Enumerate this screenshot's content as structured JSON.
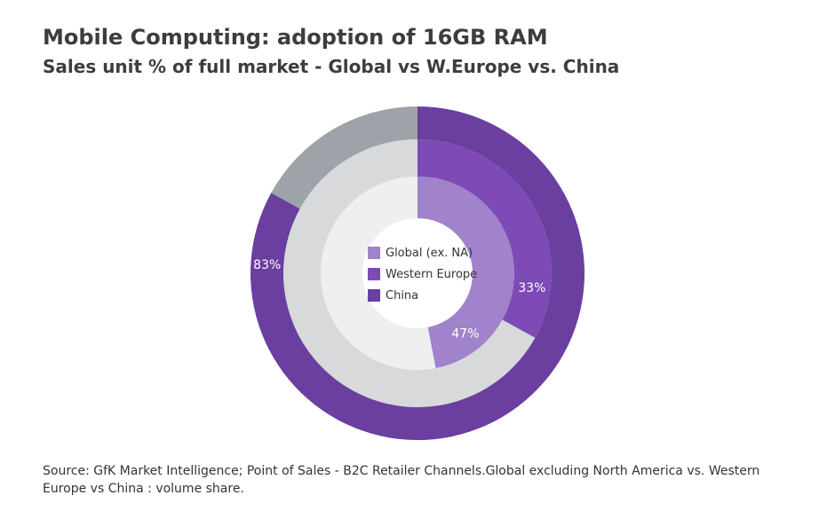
{
  "header": {
    "title": "Mobile Computing: adoption of 16GB RAM",
    "subtitle": "Sales unit % of full market - Global vs W.Europe vs. China"
  },
  "chart_data": {
    "type": "pie",
    "style": "nested-donut",
    "title": "Mobile Computing: adoption of 16GB RAM",
    "subtitle": "Sales unit % of full market - Global vs W.Europe vs. China",
    "legend_position": "center",
    "series": [
      {
        "name": "Global (ex. NA)",
        "value": 47,
        "label": "47%",
        "color": "#a083cb",
        "remainder_color": "#eeeff0"
      },
      {
        "name": "Western Europe",
        "value": 33,
        "label": "33%",
        "color": "#7e4ab6",
        "remainder_color": "#d7d9db"
      },
      {
        "name": "China",
        "value": 83,
        "label": "83%",
        "color": "#6a3fa0",
        "remainder_color": "#9da3a8"
      }
    ]
  },
  "footer": {
    "source": "Source: GfK Market Intelligence; Point of Sales - B2C Retailer Channels.Global excluding North America vs. Western Europe vs China : volume share."
  }
}
